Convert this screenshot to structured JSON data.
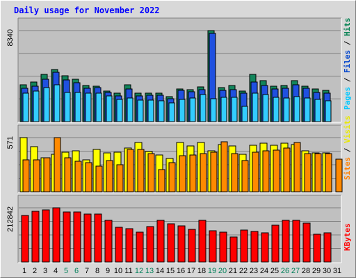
{
  "chart_data": {
    "type": "bar",
    "title": "Daily usage for November 2022",
    "days": [
      "1",
      "2",
      "3",
      "4",
      "5",
      "6",
      "7",
      "8",
      "9",
      "10",
      "11",
      "12",
      "13",
      "14",
      "15",
      "16",
      "17",
      "18",
      "19",
      "20",
      "21",
      "22",
      "23",
      "24",
      "25",
      "26",
      "27",
      "28",
      "29",
      "30",
      "31"
    ],
    "weekend_days": [
      "5",
      "6",
      "12",
      "13",
      "19",
      "20",
      "26",
      "27"
    ],
    "panels": [
      {
        "name": "pages-files-hits",
        "max_label": "8340",
        "ymax": 8340,
        "legend": [
          {
            "text": "Pages",
            "color": "#00c8ff"
          },
          {
            "text": " / ",
            "color": "#000000"
          },
          {
            "text": "Files",
            "color": "#0044cc"
          },
          {
            "text": " / ",
            "color": "#000000"
          },
          {
            "text": "Hits",
            "color": "#008050"
          }
        ],
        "series": [
          {
            "name": "Hits",
            "color": "#12855b",
            "values": [
              3385,
              3625,
              4310,
              4750,
              4175,
              3915,
              3340,
              3270,
              2780,
              2640,
              3385,
              2640,
              2640,
              2580,
              2315,
              3015,
              2915,
              3155,
              8340,
              3125,
              3325,
              2785,
              4310,
              3765,
              3245,
              3330,
              3735,
              3270,
              2975,
              2845,
              0
            ]
          },
          {
            "name": "Files",
            "color": "#1f50e0",
            "values": [
              3080,
              3240,
              3910,
              4520,
              3820,
              3570,
              3080,
              3120,
              2650,
              2330,
              2980,
              2350,
              2450,
              2390,
              2120,
              2850,
              2710,
              2950,
              8060,
              2860,
              2920,
              2590,
              3620,
              3330,
              3000,
              3050,
              3390,
              3050,
              2670,
              2620,
              0
            ]
          },
          {
            "name": "Pages",
            "color": "#33ccff",
            "values": [
              2590,
              2770,
              3150,
              3350,
              2680,
              2660,
              2610,
              2580,
              2350,
              2050,
              2160,
              1960,
              1960,
              1890,
              1710,
              2040,
              2180,
              2460,
              2080,
              2200,
              2250,
              1380,
              2580,
              2460,
              2220,
              2160,
              2270,
              2190,
              2040,
              1930,
              0
            ]
          }
        ]
      },
      {
        "name": "visits-sites",
        "max_label": "571",
        "ymax": 571,
        "legend": [
          {
            "text": "Sites",
            "color": "#ff8000"
          },
          {
            "text": " / ",
            "color": "#000000"
          },
          {
            "text": "Visits",
            "color": "#e8e800"
          }
        ],
        "series": [
          {
            "name": "Visits",
            "color": "#ffff00",
            "values": [
              571,
              475,
              360,
              395,
              420,
              430,
              340,
              445,
              410,
              415,
              462,
              518,
              423,
              390,
              348,
              520,
              486,
              520,
              430,
              495,
              485,
              395,
              490,
              515,
              490,
              510,
              500,
              430,
              413,
              410,
              0
            ]
          },
          {
            "name": "Sites",
            "color": "#ff8a00",
            "values": [
              334,
              338,
              358,
              571,
              360,
              325,
              310,
              272,
              326,
              288,
              445,
              447,
              406,
              235,
              310,
              380,
              390,
              404,
              415,
              525,
              405,
              333,
              418,
              432,
              442,
              458,
              518,
              402,
              402,
              405,
              345
            ]
          }
        ]
      },
      {
        "name": "kbytes",
        "max_label": "212842",
        "ymax": 212842,
        "legend": [
          {
            "text": "KBytes",
            "color": "#ff0000"
          }
        ],
        "series": [
          {
            "name": "KBytes",
            "color": "#ff0000",
            "values": [
              182000,
              198000,
              204000,
              212842,
              196000,
              196000,
              188000,
              189000,
              165000,
              137000,
              130000,
              117000,
              140000,
              165000,
              151000,
              142000,
              127000,
              165000,
              123000,
              117000,
              97000,
              125000,
              120000,
              115000,
              144000,
              163000,
              164000,
              154000,
              109000,
              114000,
              0
            ]
          }
        ]
      }
    ]
  }
}
